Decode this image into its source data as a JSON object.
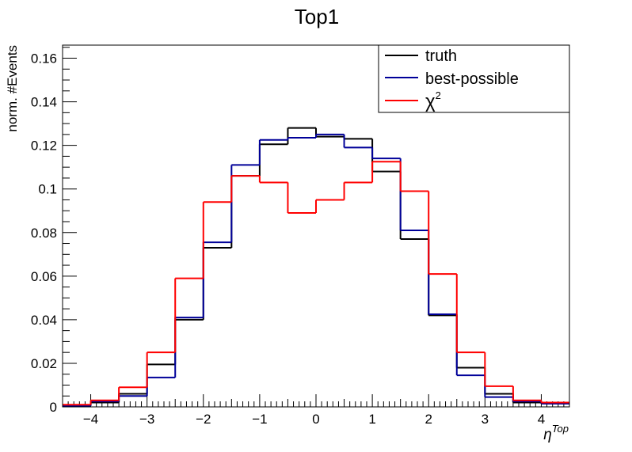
{
  "chart_data": {
    "type": "histogram-step",
    "title": "Top1",
    "xlabel_symbol": "η",
    "xlabel_sup": "Top",
    "ylabel": "norm. #Events",
    "xlim": [
      -4.5,
      4.5
    ],
    "ylim": [
      0,
      0.166
    ],
    "x_ticks": [
      -4,
      -3,
      -2,
      -1,
      0,
      1,
      2,
      3,
      4
    ],
    "x_tick_labels": [
      "−4",
      "−3",
      "−2",
      "−1",
      "0",
      "1",
      "2",
      "3",
      "4"
    ],
    "y_ticks": [
      0,
      0.02,
      0.04,
      0.06,
      0.08,
      0.1,
      0.12,
      0.14,
      0.16
    ],
    "y_tick_labels": [
      "0",
      "0.02",
      "0.04",
      "0.06",
      "0.08",
      "0.1",
      "0.12",
      "0.14",
      "0.16"
    ],
    "bin_edges": [
      -4.5,
      -4.0,
      -3.5,
      -3.0,
      -2.5,
      -2.0,
      -1.5,
      -1.0,
      -0.5,
      0.0,
      0.5,
      1.0,
      1.5,
      2.0,
      2.5,
      3.0,
      3.5,
      4.0,
      4.5
    ],
    "legend_position": "top-right",
    "series": [
      {
        "name": "truth",
        "color": "#000000",
        "values": [
          0.0005,
          0.002,
          0.006,
          0.0195,
          0.04,
          0.073,
          0.106,
          0.1205,
          0.128,
          0.124,
          0.123,
          0.108,
          0.077,
          0.042,
          0.018,
          0.006,
          0.002,
          0.0015
        ]
      },
      {
        "name": "best-possible",
        "color": "#000099",
        "values": [
          0.0005,
          0.0025,
          0.005,
          0.0135,
          0.041,
          0.0755,
          0.111,
          0.1225,
          0.1235,
          0.125,
          0.119,
          0.114,
          0.081,
          0.0425,
          0.0145,
          0.0045,
          0.0025,
          0.0015
        ]
      },
      {
        "name_base": "χ",
        "name_sup": "2",
        "color": "#ff0000",
        "values": [
          0.001,
          0.003,
          0.009,
          0.025,
          0.059,
          0.094,
          0.106,
          0.103,
          0.089,
          0.095,
          0.103,
          0.1125,
          0.099,
          0.061,
          0.025,
          0.0095,
          0.003,
          0.002
        ]
      }
    ]
  }
}
